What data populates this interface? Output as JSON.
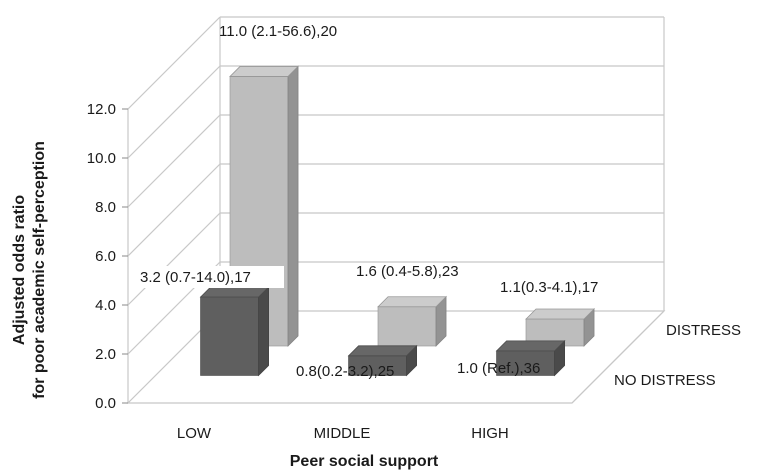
{
  "chart_data": {
    "type": "bar",
    "style": "3d-clustered",
    "categories": [
      "LOW",
      "MIDDLE",
      "HIGH"
    ],
    "series": [
      {
        "name": "NO DISTRESS",
        "values": [
          3.2,
          0.8,
          1.0
        ],
        "labels": [
          "3.2 (0.7-14.0),17",
          "0.8(0.2-3.2),25",
          "1.0 (Ref.),36"
        ],
        "color": "#5f5f5f"
      },
      {
        "name": "DISTRESS",
        "values": [
          11.0,
          1.6,
          1.1
        ],
        "labels": [
          "11.0 (2.1-56.6),20",
          "1.6 (0.4-5.8),23",
          "1.1(0.3-4.1),17"
        ],
        "color": "#bdbdbd"
      }
    ],
    "y_ticks": [
      "0.0",
      "2.0",
      "4.0",
      "6.0",
      "8.0",
      "10.0",
      "12.0"
    ],
    "ylim": [
      0,
      12
    ],
    "ylabel_line1": "Adjusted odds ratio",
    "ylabel_line2": "for poor academic self-perception",
    "xlabel": "Peer social support",
    "grid": true
  }
}
